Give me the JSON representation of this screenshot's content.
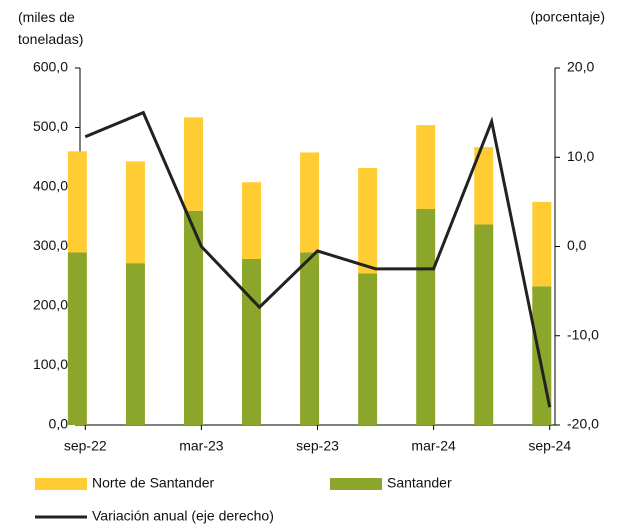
{
  "chart_data": {
    "type": "bar-line",
    "ylabel": "(miles de toneladas)",
    "y2label": "(porcentaje)",
    "categories": [
      "sep-22",
      null,
      "mar-23",
      null,
      "sep-23",
      null,
      "mar-24",
      null,
      "sep-24"
    ],
    "series": [
      {
        "name": "Santander",
        "type": "bar",
        "color": "#8ca62b",
        "values": [
          290,
          272,
          360,
          279,
          290,
          255,
          363,
          337,
          233
        ]
      },
      {
        "name": "Norte de Santander",
        "type": "bar",
        "color": "#ffcc33",
        "values": [
          170,
          171,
          157,
          129,
          168,
          177,
          141,
          130,
          142
        ]
      },
      {
        "name": "Variación anual (eje derecho)",
        "type": "line",
        "axis": "y2",
        "color": "#222222",
        "values": [
          12.3,
          15,
          0,
          -6.8,
          -0.5,
          -2.5,
          -2.5,
          14,
          -18
        ]
      }
    ],
    "legend_order": [
      1,
      0,
      2
    ],
    "ylim": [
      0,
      600
    ],
    "yticks": [
      {
        "value": 0,
        "label": "0,0"
      },
      {
        "value": 100,
        "label": "100,0"
      },
      {
        "value": 200,
        "label": "200,0"
      },
      {
        "value": 300,
        "label": "300,0"
      },
      {
        "value": 400,
        "label": "400,0"
      },
      {
        "value": 500,
        "label": "500,0"
      },
      {
        "value": 600,
        "label": "600,0"
      }
    ],
    "y2lim": [
      -20,
      20
    ],
    "y2ticks": [
      {
        "value": -20,
        "label": "-20,0"
      },
      {
        "value": -10,
        "label": "-10,0"
      },
      {
        "value": 0,
        "label": "0,0"
      },
      {
        "value": 10,
        "label": "10,0"
      },
      {
        "value": 20,
        "label": "20,0"
      }
    ],
    "grid": false
  }
}
